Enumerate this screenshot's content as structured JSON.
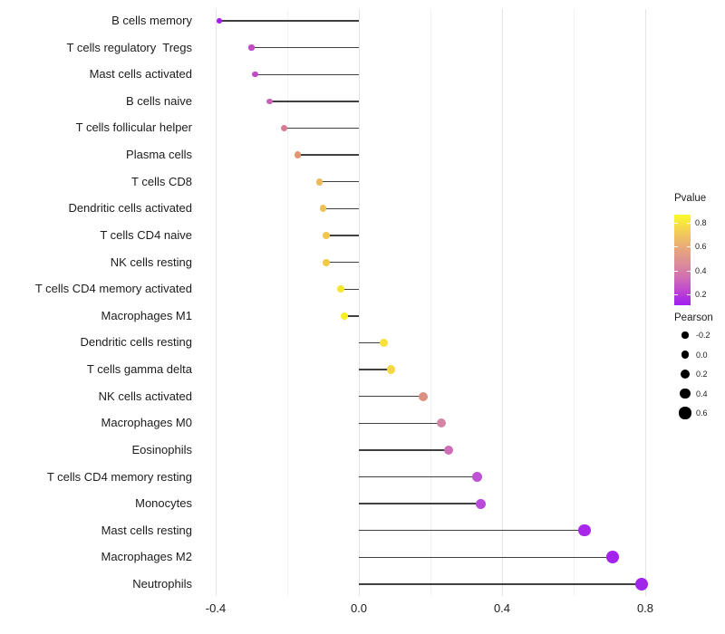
{
  "chart_data": {
    "type": "lollipop",
    "orientation": "horizontal",
    "title": "",
    "xlabel": "",
    "ylabel": "",
    "grid": "on",
    "x_axis": {
      "range": [
        -0.45,
        0.85
      ],
      "major_ticks": [
        -0.4,
        0.0,
        0.4,
        0.8
      ],
      "major_tick_labels": [
        "-0.4",
        "0.0",
        "0.4",
        "0.8"
      ],
      "minor_ticks": [
        -0.2,
        0.2,
        0.6
      ]
    },
    "encoding": {
      "x": "Pearson correlation",
      "y": "cell type",
      "color": "Pvalue",
      "size": "Pearson"
    },
    "points": [
      {
        "label": "B cells memory",
        "pearson": -0.39,
        "pvalue_approx": 0.1,
        "color": "#A21FE9"
      },
      {
        "label": "T cells regulatory  Tregs",
        "pearson": -0.3,
        "pvalue_approx": 0.27,
        "color": "#C24AC8"
      },
      {
        "label": "Mast cells activated",
        "pearson": -0.29,
        "pvalue_approx": 0.27,
        "color": "#C24AC6"
      },
      {
        "label": "B cells naive",
        "pearson": -0.25,
        "pvalue_approx": 0.35,
        "color": "#CC63B3"
      },
      {
        "label": "T cells follicular helper",
        "pearson": -0.21,
        "pvalue_approx": 0.44,
        "color": "#D97B92"
      },
      {
        "label": "Plasma cells",
        "pearson": -0.17,
        "pvalue_approx": 0.54,
        "color": "#E6956E"
      },
      {
        "label": "T cells CD8",
        "pearson": -0.11,
        "pvalue_approx": 0.64,
        "color": "#EDB95A"
      },
      {
        "label": "Dendritic cells activated",
        "pearson": -0.1,
        "pvalue_approx": 0.66,
        "color": "#EFC052"
      },
      {
        "label": "T cells CD4 naive",
        "pearson": -0.09,
        "pvalue_approx": 0.68,
        "color": "#F0C64C"
      },
      {
        "label": "NK cells resting",
        "pearson": -0.09,
        "pvalue_approx": 0.69,
        "color": "#F1CA48"
      },
      {
        "label": "T cells CD4 memory activated",
        "pearson": -0.05,
        "pvalue_approx": 0.79,
        "color": "#F6E72C"
      },
      {
        "label": "Macrophages M1",
        "pearson": -0.04,
        "pvalue_approx": 0.84,
        "color": "#F9EE22"
      },
      {
        "label": "Dendritic cells resting",
        "pearson": 0.07,
        "pvalue_approx": 0.81,
        "color": "#F7E236"
      },
      {
        "label": "T cells gamma delta",
        "pearson": 0.09,
        "pvalue_approx": 0.76,
        "color": "#F5D844"
      },
      {
        "label": "NK cells activated",
        "pearson": 0.18,
        "pvalue_approx": 0.53,
        "color": "#DE9080"
      },
      {
        "label": "Macrophages M0",
        "pearson": 0.23,
        "pvalue_approx": 0.42,
        "color": "#D584A8"
      },
      {
        "label": "Eosinophils",
        "pearson": 0.25,
        "pvalue_approx": 0.36,
        "color": "#CC6DB6"
      },
      {
        "label": "T cells CD4 memory resting",
        "pearson": 0.33,
        "pvalue_approx": 0.26,
        "color": "#BF51D3"
      },
      {
        "label": "Monocytes",
        "pearson": 0.34,
        "pvalue_approx": 0.24,
        "color": "#BA48DA"
      },
      {
        "label": "Mast cells resting",
        "pearson": 0.63,
        "pvalue_approx": 0.12,
        "color": "#A727EA"
      },
      {
        "label": "Macrophages M2",
        "pearson": 0.71,
        "pvalue_approx": 0.11,
        "color": "#A522EC"
      },
      {
        "label": "Neutrophils",
        "pearson": 0.79,
        "pvalue_approx": 0.1,
        "color": "#A226E9"
      }
    ],
    "legends": {
      "pvalue": {
        "title": "Pvalue",
        "type": "colorbar",
        "tick_labels": [
          "0.8",
          "0.6",
          "0.4",
          "0.2"
        ],
        "value_range_shown": [
          0.87,
          0.11
        ],
        "gradient_stops": [
          {
            "pos": 0.0,
            "color": "#FBFB2B"
          },
          {
            "pos": 0.18,
            "color": "#F3D054"
          },
          {
            "pos": 0.38,
            "color": "#E7A67E"
          },
          {
            "pos": 0.53,
            "color": "#DE8E96"
          },
          {
            "pos": 0.68,
            "color": "#D172B1"
          },
          {
            "pos": 0.83,
            "color": "#C04BCE"
          },
          {
            "pos": 0.94,
            "color": "#AC2BE4"
          },
          {
            "pos": 1.0,
            "color": "#A01FF0"
          }
        ]
      },
      "pearson": {
        "title": "Pearson",
        "type": "size",
        "entries": [
          {
            "value": -0.2,
            "label": "-0.2"
          },
          {
            "value": 0.0,
            "label": "0.0"
          },
          {
            "value": 0.2,
            "label": "0.2"
          },
          {
            "value": 0.4,
            "label": "0.4"
          },
          {
            "value": 0.6,
            "label": "0.6"
          }
        ],
        "dot_color": "#000000"
      }
    },
    "style": {
      "stem_color": "#404040",
      "major_grid_color": "#e4e4e4",
      "minor_grid_color": "#f2f2f2",
      "background": "#ffffff"
    }
  }
}
